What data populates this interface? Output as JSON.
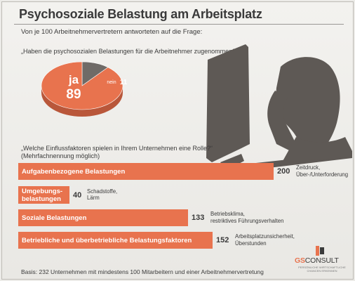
{
  "title": "Psychosoziale Belastung am Arbeitsplatz",
  "subtitle": "Von je 100 Arbeitnehmervertretern antworteten auf die Frage:",
  "question1": "„Haben die psychosozialen Belastungen für die Arbeitnehmer zugenommen?“",
  "question2": "„Welche Einflussfaktoren spielen in Ihrem Unternehmen eine Rolle?“ (Mehrfachnennung möglich)",
  "basis": "Basis: 232 Unternehmen mit mindestens 100 Mitarbeitern und einer Arbeitnehmervertretung",
  "logo": {
    "gs": "GS",
    "name": "CONSULT",
    "tagline": "PERSÖNLICHE WIRTSCHAFTLICHE CHANCEN ERKENNEN"
  },
  "colors": {
    "accent": "#e8734e",
    "dark": "#6f6b67",
    "silhouette": "#5e5955"
  },
  "chart_data": [
    {
      "type": "pie",
      "title": "„Haben die psychosozialen Belastungen für die Arbeitnehmer zugenommen?“",
      "slices": [
        {
          "label": "ja",
          "value": 89,
          "color": "#e8734e"
        },
        {
          "label": "nein",
          "value": 11,
          "color": "#6f6b67"
        }
      ]
    },
    {
      "type": "bar",
      "orientation": "horizontal",
      "title": "„Welche Einflussfaktoren spielen in Ihrem Unternehmen eine Rolle?“ (Mehrfachnennung möglich)",
      "xlim": [
        0,
        200
      ],
      "bars": [
        {
          "label": "Aufgabenbezogene Belastungen",
          "value": 200,
          "note": "Zeitdruck,\nÜber-/Unterforderung"
        },
        {
          "label": "Umgebungs-\nbelastungen",
          "value": 40,
          "note": "Schadstoffe,\nLärm"
        },
        {
          "label": "Soziale Belastungen",
          "value": 133,
          "note": "Betriebsklima,\nrestriktives Führungsverhalten"
        },
        {
          "label": "Betriebliche und überbetriebliche Belastungsfaktoren",
          "value": 152,
          "note": "Arbeitsplatzunsicherheit,\nÜberstunden"
        }
      ]
    }
  ]
}
